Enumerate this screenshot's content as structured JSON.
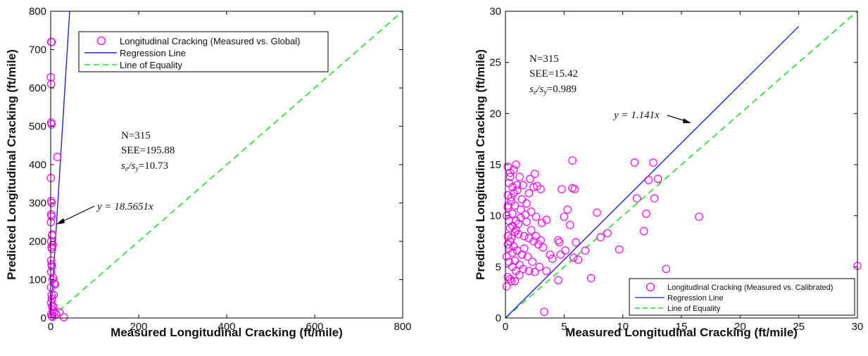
{
  "colors": {
    "points": "#ff00ff",
    "regression": "#2020e0",
    "equality": "#22dd22",
    "axes": "#000000"
  },
  "chart_data": [
    {
      "type": "scatter",
      "xlabel": "Measured Longitudinal Cracking (ft/mile)",
      "ylabel": "Predicted Longitudinal Cracking (ft/mile)",
      "xlim": [
        0,
        800
      ],
      "ylim": [
        0,
        800
      ],
      "xticks": [
        0,
        200,
        400,
        600,
        800
      ],
      "yticks": [
        0,
        100,
        200,
        300,
        400,
        500,
        600,
        700,
        800
      ],
      "legend_position": "top-right",
      "legend": [
        "Longitudinal Cracking (Measured vs. Global)",
        "Regression Line",
        "Line of Equality"
      ],
      "stats": {
        "n": "N=315",
        "see": "SEE=195.88",
        "ratio_label": "s",
        "ratio_sub_a": "e",
        "ratio_sub_b": "y",
        "ratio_value": "=10.73"
      },
      "regression": {
        "label": "y = 18.5651x",
        "slope": 18.5651
      },
      "points": [
        [
          1,
          720
        ],
        [
          2,
          720
        ],
        [
          0.5,
          628
        ],
        [
          1,
          610
        ],
        [
          1,
          510
        ],
        [
          2,
          505
        ],
        [
          0.5,
          365
        ],
        [
          1,
          305
        ],
        [
          2,
          300
        ],
        [
          1,
          270
        ],
        [
          2,
          265
        ],
        [
          0.5,
          250
        ],
        [
          3,
          215
        ],
        [
          4,
          218
        ],
        [
          1,
          200
        ],
        [
          2,
          185
        ],
        [
          3,
          180
        ],
        [
          5,
          190
        ],
        [
          1,
          150
        ],
        [
          2,
          140
        ],
        [
          3,
          135
        ],
        [
          4,
          100
        ],
        [
          6,
          105
        ],
        [
          8,
          90
        ],
        [
          10,
          88
        ],
        [
          15,
          420
        ],
        [
          2,
          60
        ],
        [
          1,
          40
        ],
        [
          3,
          30
        ],
        [
          5,
          20
        ],
        [
          8,
          15
        ],
        [
          12,
          10
        ],
        [
          2,
          5
        ],
        [
          4,
          3
        ],
        [
          20,
          15
        ],
        [
          30,
          2
        ],
        [
          6,
          30
        ],
        [
          0.5,
          80
        ],
        [
          1,
          120
        ],
        [
          3,
          50
        ],
        [
          7,
          60
        ],
        [
          1,
          10
        ]
      ]
    },
    {
      "type": "scatter",
      "xlabel": "Measured Longitudinal Cracking (ft/mile)",
      "ylabel": "Predicted Longitudinal Cracking (ft/mile)",
      "xlim": [
        0,
        30
      ],
      "ylim": [
        0,
        30
      ],
      "xticks": [
        0,
        5,
        10,
        15,
        20,
        25,
        30
      ],
      "yticks": [
        0,
        5,
        10,
        15,
        20,
        25,
        30
      ],
      "legend_position": "bottom-right",
      "legend": [
        "Longitudinal Cracking (Measured vs. Calibrated)",
        "Regression Line",
        "Line of Equality"
      ],
      "stats": {
        "n": "N=315",
        "see": "SEE=15.42",
        "ratio_label": "s",
        "ratio_sub_a": "e",
        "ratio_sub_b": "y",
        "ratio_value": "=0.989"
      },
      "regression": {
        "label": "y = 1.141x",
        "slope": 1.141,
        "x_end": 25
      },
      "points": [
        [
          0.2,
          14.8
        ],
        [
          0.4,
          14.2
        ],
        [
          0.7,
          14.5
        ],
        [
          0.9,
          15.0
        ],
        [
          1.2,
          13.8
        ],
        [
          0.3,
          13.2
        ],
        [
          0.6,
          12.8
        ],
        [
          1.0,
          12.5
        ],
        [
          1.5,
          13.0
        ],
        [
          2.1,
          13.6
        ],
        [
          2.5,
          14.1
        ],
        [
          2.7,
          12.9
        ],
        [
          3.0,
          12.6
        ],
        [
          0.2,
          12.0
        ],
        [
          0.5,
          11.4
        ],
        [
          0.8,
          11.0
        ],
        [
          1.3,
          10.6
        ],
        [
          1.8,
          11.2
        ],
        [
          2.2,
          10.4
        ],
        [
          2.6,
          9.9
        ],
        [
          3.1,
          9.3
        ],
        [
          3.5,
          9.6
        ],
        [
          0.1,
          10.0
        ],
        [
          0.3,
          9.5
        ],
        [
          0.6,
          9.0
        ],
        [
          0.9,
          8.6
        ],
        [
          1.1,
          8.2
        ],
        [
          1.6,
          8.0
        ],
        [
          2.0,
          7.8
        ],
        [
          2.4,
          7.5
        ],
        [
          2.8,
          7.2
        ],
        [
          3.2,
          6.9
        ],
        [
          0.2,
          8.0
        ],
        [
          0.4,
          7.5
        ],
        [
          0.7,
          7.0
        ],
        [
          1.0,
          6.6
        ],
        [
          1.4,
          6.2
        ],
        [
          1.9,
          6.0
        ],
        [
          2.3,
          5.5
        ],
        [
          2.9,
          5.0
        ],
        [
          0.1,
          6.0
        ],
        [
          0.3,
          5.5
        ],
        [
          0.6,
          5.0
        ],
        [
          0.9,
          4.6
        ],
        [
          1.2,
          4.2
        ],
        [
          0.2,
          4.0
        ],
        [
          0.5,
          3.6
        ],
        [
          0.1,
          3.1
        ],
        [
          0.4,
          3.8
        ],
        [
          0.8,
          3.6
        ],
        [
          1.5,
          4.8
        ],
        [
          2.0,
          4.6
        ],
        [
          2.5,
          4.5
        ],
        [
          0.3,
          6.8
        ],
        [
          0.5,
          7.8
        ],
        [
          0.8,
          8.4
        ],
        [
          1.1,
          9.2
        ],
        [
          1.3,
          9.8
        ],
        [
          1.7,
          10.1
        ],
        [
          0.2,
          10.8
        ],
        [
          0.5,
          11.8
        ],
        [
          0.7,
          12.2
        ],
        [
          1.0,
          13.0
        ],
        [
          0.4,
          13.8
        ],
        [
          0.2,
          11.0
        ],
        [
          0.6,
          10.2
        ],
        [
          0.9,
          9.5
        ],
        [
          0.4,
          8.8
        ],
        [
          0.2,
          7.2
        ],
        [
          0.6,
          6.4
        ],
        [
          0.8,
          5.6
        ],
        [
          1.2,
          5.2
        ],
        [
          1.6,
          6.8
        ],
        [
          2.2,
          8.6
        ],
        [
          2.6,
          8.0
        ],
        [
          3.0,
          7.6
        ],
        [
          1.4,
          11.6
        ],
        [
          2.0,
          12.2
        ],
        [
          2.4,
          12.8
        ],
        [
          1.8,
          9.4
        ],
        [
          4.5,
          7.6
        ],
        [
          4.6,
          7.4
        ],
        [
          4.7,
          6.2
        ],
        [
          4.8,
          12.6
        ],
        [
          5.0,
          9.9
        ],
        [
          5.1,
          6.6
        ],
        [
          5.3,
          10.6
        ],
        [
          5.5,
          9.1
        ],
        [
          5.7,
          15.4
        ],
        [
          5.7,
          12.7
        ],
        [
          5.8,
          5.9
        ],
        [
          5.9,
          12.6
        ],
        [
          6.0,
          7.4
        ],
        [
          6.2,
          5.7
        ],
        [
          6.8,
          6.6
        ],
        [
          7.3,
          3.9
        ],
        [
          7.8,
          10.3
        ],
        [
          8.1,
          7.9
        ],
        [
          8.7,
          8.3
        ],
        [
          9.7,
          6.7
        ],
        [
          4.5,
          3.7
        ],
        [
          3.3,
          0.6
        ],
        [
          11.0,
          15.2
        ],
        [
          11.2,
          11.7
        ],
        [
          11.8,
          8.5
        ],
        [
          12.0,
          10.2
        ],
        [
          12.2,
          13.5
        ],
        [
          12.6,
          15.2
        ],
        [
          12.7,
          11.7
        ],
        [
          13.0,
          13.6
        ],
        [
          13.7,
          4.8
        ],
        [
          16.5,
          9.9
        ],
        [
          30.0,
          5.1
        ],
        [
          3.8,
          6.2
        ],
        [
          4.0,
          5.8
        ],
        [
          3.5,
          4.6
        ]
      ]
    }
  ]
}
